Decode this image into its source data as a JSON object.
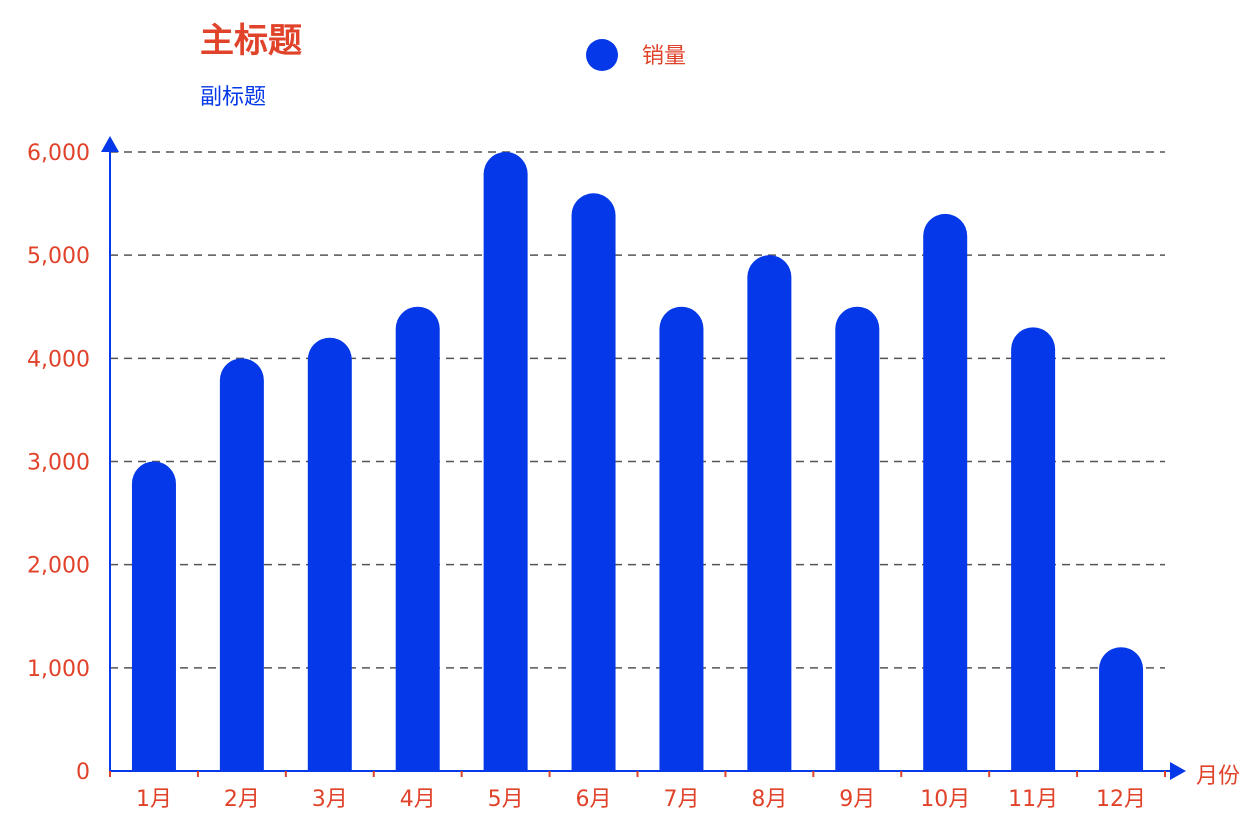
{
  "chart_data": {
    "type": "bar",
    "title": "主标题",
    "subtitle": "副标题",
    "xlabel": "月份",
    "ylabel": "",
    "categories": [
      "1月",
      "2月",
      "3月",
      "4月",
      "5月",
      "6月",
      "7月",
      "8月",
      "9月",
      "10月",
      "11月",
      "12月"
    ],
    "series": [
      {
        "name": "销量",
        "values": [
          3000,
          4000,
          4200,
          4500,
          6000,
          5600,
          4500,
          5000,
          4500,
          5400,
          4300,
          1200
        ]
      }
    ],
    "ylim": [
      0,
      6000
    ],
    "yticks": [
      "0",
      "1,000",
      "2,000",
      "3,000",
      "4,000",
      "5,000",
      "6,000"
    ],
    "grid": true,
    "legend_position": "top-center"
  },
  "colors": {
    "bar": "#0538e8",
    "title": "#e0422a",
    "subtitle": "#0538e8",
    "axis": "#0538e8",
    "tick_label": "#e0422a",
    "grid": "#555555",
    "legend_text": "#e0422a"
  }
}
